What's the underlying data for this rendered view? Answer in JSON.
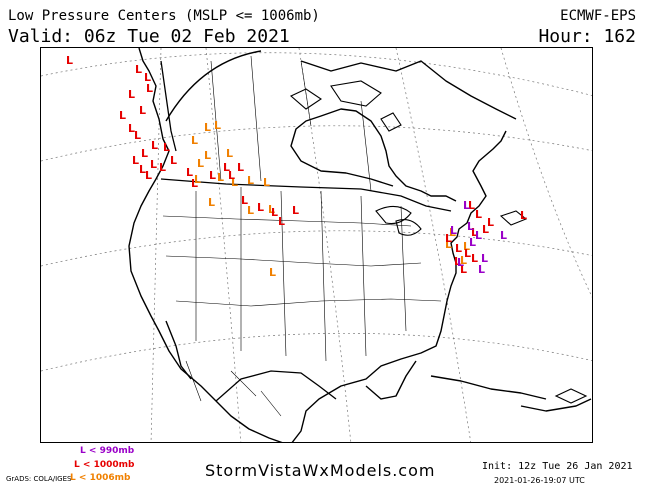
{
  "header": {
    "title": "Low Pressure Centers (MSLP <= 1006mb)",
    "valid": "Valid: 06z Tue 02 Feb 2021",
    "model": "ECMWF-EPS",
    "hour": "Hour: 162"
  },
  "legend": {
    "items": [
      {
        "symbol": "L",
        "label": "< 990mb",
        "color": "#9a00c8"
      },
      {
        "symbol": "L",
        "label": "< 1000mb",
        "color": "#e60000"
      },
      {
        "symbol": "L",
        "label": "< 1006mb",
        "color": "#f08000"
      }
    ],
    "grads": "GrADS: COLA/IGES"
  },
  "footer": {
    "brand": "StormVistaWxModels.com",
    "init": "Init: 12z Tue 26 Jan 2021",
    "stamp": "2021-01-26-19:07 UTC"
  },
  "colors": {
    "purple": "#9a00c8",
    "red": "#e60000",
    "orange": "#f08000"
  },
  "lows": {
    "symbol": "L",
    "purple": [
      [
        462,
        208
      ],
      [
        466,
        229
      ],
      [
        474,
        238
      ],
      [
        499,
        238
      ],
      [
        468,
        245
      ],
      [
        480,
        261
      ],
      [
        456,
        265
      ],
      [
        477,
        272
      ],
      [
        449,
        233
      ]
    ],
    "red": [
      [
        65,
        63
      ],
      [
        134,
        72
      ],
      [
        143,
        80
      ],
      [
        145,
        91
      ],
      [
        127,
        97
      ],
      [
        138,
        113
      ],
      [
        118,
        118
      ],
      [
        127,
        131
      ],
      [
        133,
        138
      ],
      [
        150,
        148
      ],
      [
        140,
        156
      ],
      [
        131,
        163
      ],
      [
        149,
        167
      ],
      [
        144,
        178
      ],
      [
        162,
        150
      ],
      [
        138,
        172
      ],
      [
        158,
        170
      ],
      [
        169,
        163
      ],
      [
        185,
        175
      ],
      [
        190,
        186
      ],
      [
        208,
        178
      ],
      [
        222,
        170
      ],
      [
        227,
        178
      ],
      [
        236,
        170
      ],
      [
        240,
        203
      ],
      [
        256,
        210
      ],
      [
        270,
        215
      ],
      [
        277,
        224
      ],
      [
        291,
        213
      ],
      [
        467,
        208
      ],
      [
        474,
        217
      ],
      [
        486,
        225
      ],
      [
        519,
        218
      ],
      [
        481,
        232
      ],
      [
        470,
        235
      ],
      [
        444,
        241
      ],
      [
        454,
        251
      ],
      [
        463,
        256
      ],
      [
        470,
        261
      ],
      [
        453,
        264
      ],
      [
        459,
        272
      ]
    ],
    "orange": [
      [
        203,
        130
      ],
      [
        213,
        128
      ],
      [
        190,
        143
      ],
      [
        203,
        158
      ],
      [
        196,
        166
      ],
      [
        225,
        156
      ],
      [
        193,
        182
      ],
      [
        216,
        180
      ],
      [
        230,
        185
      ],
      [
        246,
        183
      ],
      [
        262,
        185
      ],
      [
        246,
        213
      ],
      [
        267,
        212
      ],
      [
        268,
        275
      ],
      [
        207,
        205
      ],
      [
        448,
        235
      ],
      [
        444,
        247
      ],
      [
        462,
        249
      ],
      [
        459,
        263
      ]
    ]
  }
}
